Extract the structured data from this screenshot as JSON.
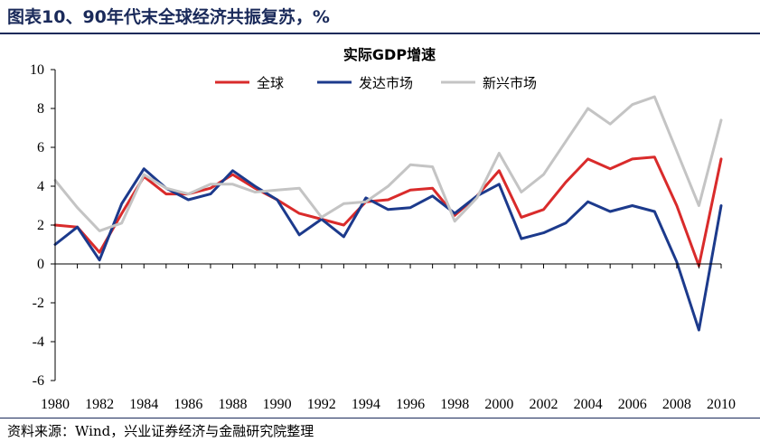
{
  "figure": {
    "title": "图表10、90年代末全球经济共振复苏，%",
    "source": "资料来源：Wind，兴业证券经济与金融研究院整理"
  },
  "chart_data": {
    "type": "line",
    "title": "实际GDP增速",
    "x": [
      1980,
      1981,
      1982,
      1983,
      1984,
      1985,
      1986,
      1987,
      1988,
      1989,
      1990,
      1991,
      1992,
      1993,
      1994,
      1995,
      1996,
      1997,
      1998,
      1999,
      2000,
      2001,
      2002,
      2003,
      2004,
      2005,
      2006,
      2007,
      2008,
      2009,
      2010
    ],
    "xticks": [
      1980,
      1982,
      1984,
      1986,
      1988,
      1990,
      1992,
      1994,
      1996,
      1998,
      2000,
      2002,
      2004,
      2006,
      2008,
      2010
    ],
    "ylim": [
      -6,
      10
    ],
    "yticks": [
      -6,
      -4,
      -2,
      0,
      2,
      4,
      6,
      8,
      10
    ],
    "grid": false,
    "legend_position": "top-center",
    "series": [
      {
        "name": "全球",
        "color": "#d92b2b",
        "values": [
          2.0,
          1.9,
          0.6,
          2.6,
          4.5,
          3.6,
          3.6,
          3.9,
          4.6,
          3.9,
          3.3,
          2.6,
          2.3,
          2.0,
          3.2,
          3.3,
          3.8,
          3.9,
          2.5,
          3.5,
          4.8,
          2.4,
          2.8,
          4.2,
          5.4,
          4.9,
          5.4,
          5.5,
          3.0,
          -0.1,
          5.4
        ]
      },
      {
        "name": "发达市场",
        "color": "#1c3a8c",
        "values": [
          1.0,
          1.9,
          0.2,
          3.1,
          4.9,
          3.9,
          3.3,
          3.6,
          4.8,
          4.0,
          3.3,
          1.5,
          2.3,
          1.4,
          3.4,
          2.8,
          2.9,
          3.5,
          2.6,
          3.5,
          4.1,
          1.3,
          1.6,
          2.1,
          3.2,
          2.7,
          3.0,
          2.7,
          0.1,
          -3.4,
          3.0
        ]
      },
      {
        "name": "新兴市场",
        "color": "#c4c4c4",
        "values": [
          4.3,
          2.9,
          1.7,
          2.1,
          4.6,
          3.9,
          3.6,
          4.1,
          4.1,
          3.7,
          3.8,
          3.9,
          2.4,
          3.1,
          3.2,
          4.0,
          5.1,
          5.0,
          2.2,
          3.4,
          5.7,
          3.7,
          4.6,
          6.3,
          8.0,
          7.2,
          8.2,
          8.6,
          5.8,
          3.0,
          7.4
        ]
      }
    ]
  }
}
